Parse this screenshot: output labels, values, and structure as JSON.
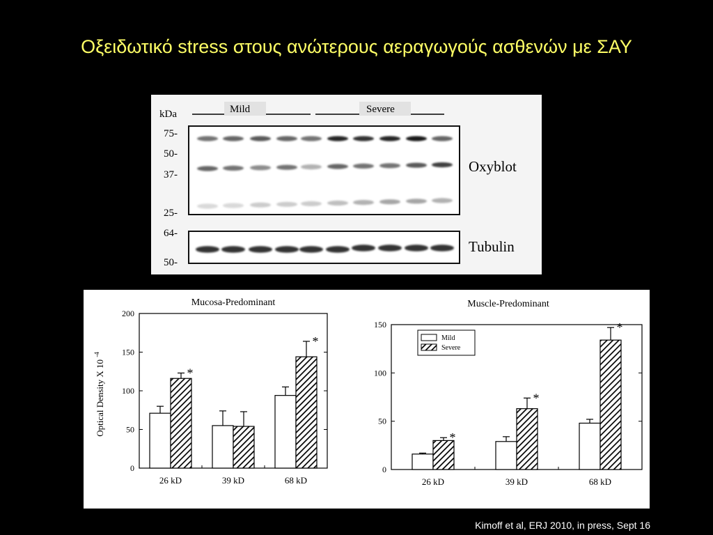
{
  "slide": {
    "title": "Οξειδωτικό stress στους ανώτερους αεραγωγούς ασθενών με ΣΑΥ",
    "citation": "Kimoff et al, ERJ 2010, in press, Sept 16"
  },
  "blot": {
    "unit_label": "kDa",
    "group_labels": [
      "Mild",
      "Severe"
    ],
    "markers": [
      "75-",
      "50-",
      "37-",
      "25-",
      "64-",
      "50-"
    ],
    "panel_labels": [
      "Oxyblot",
      "Tubulin"
    ]
  },
  "chart_data": [
    {
      "type": "bar",
      "title": "Mucosa-Predominant",
      "ylabel": "Optical Density X 10",
      "ylabel_superscript": "-4",
      "categories": [
        "26 kD",
        "39 kD",
        "68 kD"
      ],
      "ylim": [
        0,
        200
      ],
      "yticks": [
        0,
        50,
        100,
        150,
        200
      ],
      "series": [
        {
          "values": [
            71,
            55,
            94
          ],
          "errors": [
            9,
            19,
            11
          ],
          "pattern": "open",
          "color": "#ffffff"
        },
        {
          "values": [
            116,
            54,
            144
          ],
          "errors": [
            7,
            19,
            20
          ],
          "pattern": "hatched",
          "color": "#000000"
        }
      ],
      "significance": [
        "*",
        "",
        "*"
      ],
      "legend": null
    },
    {
      "type": "bar",
      "title": "Muscle-Predominant",
      "ylabel": "",
      "categories": [
        "26 kD",
        "39 kD",
        "68 kD"
      ],
      "ylim": [
        0,
        150
      ],
      "yticks": [
        0,
        50,
        100,
        150
      ],
      "series": [
        {
          "name": "Mild",
          "values": [
            16,
            29,
            48
          ],
          "errors": [
            1,
            5,
            4
          ],
          "pattern": "open",
          "color": "#ffffff"
        },
        {
          "name": "Severe",
          "values": [
            30,
            63,
            134
          ],
          "errors": [
            3,
            11,
            13
          ],
          "pattern": "hatched",
          "color": "#000000"
        }
      ],
      "significance": [
        "*",
        "*",
        "*"
      ],
      "legend": "top-left"
    }
  ]
}
